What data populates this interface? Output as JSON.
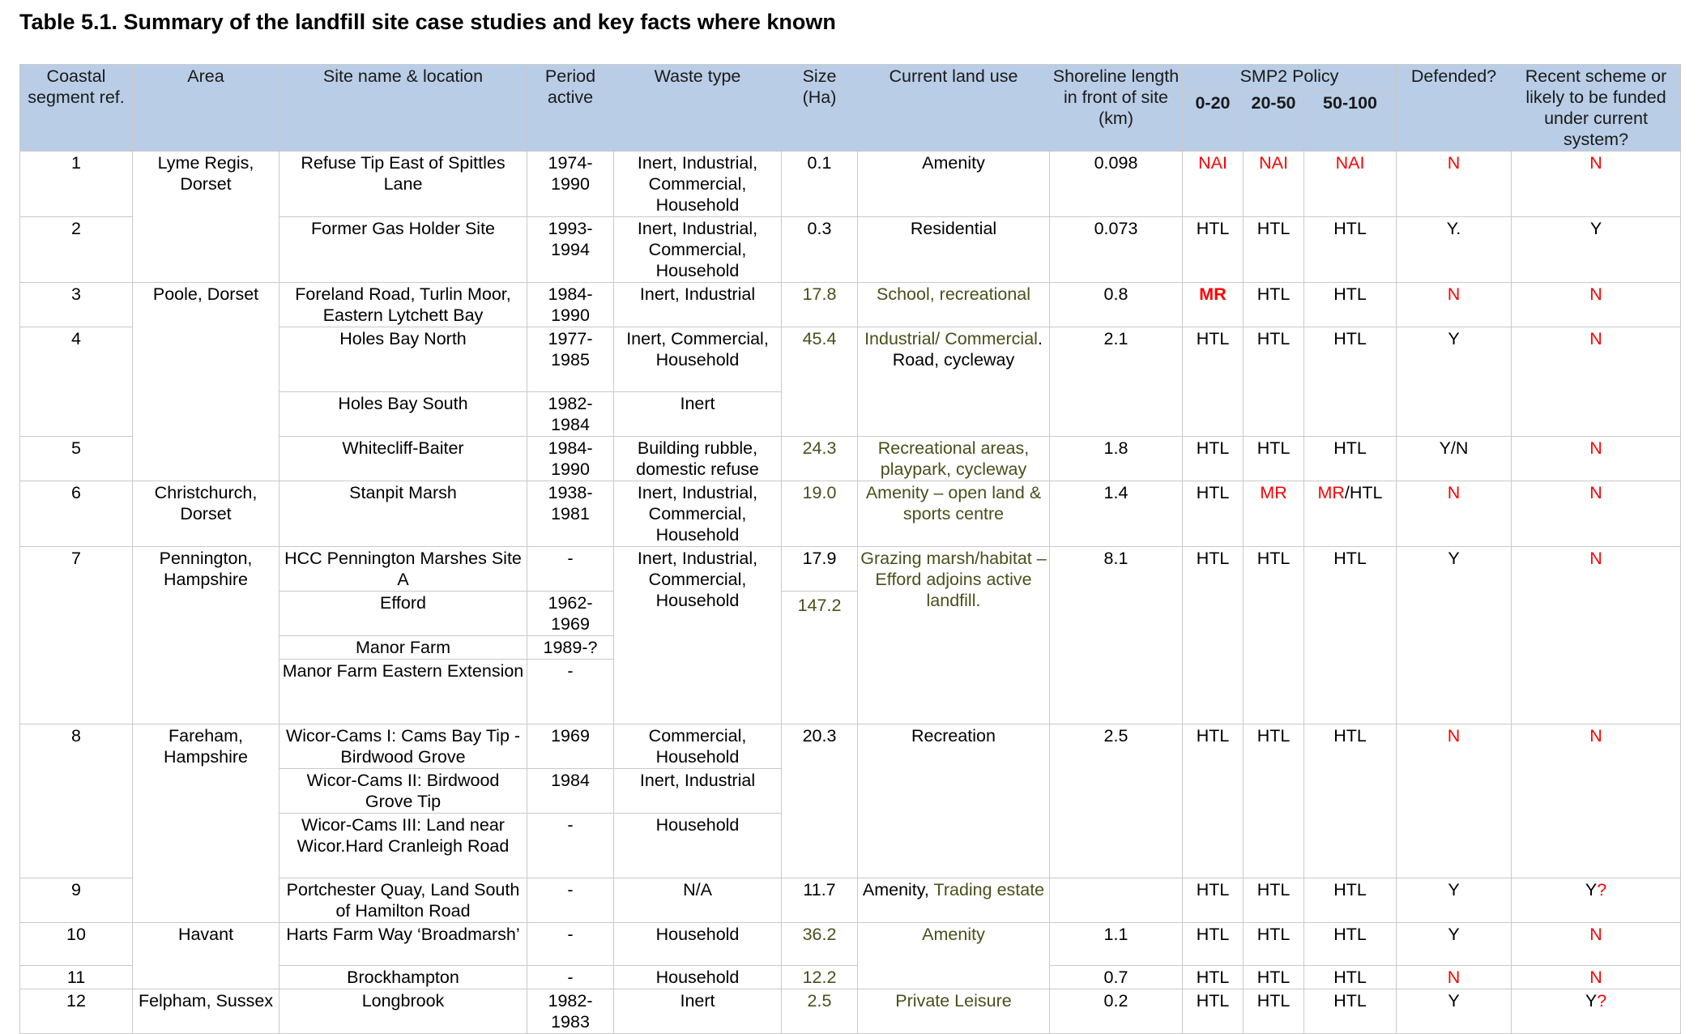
{
  "title": "Table 5.1. Summary of the landfill site case studies and key facts where known",
  "headers": {
    "ref": "Coastal segment ref.",
    "area": "Area",
    "site": "Site name & location",
    "period": "Period active",
    "waste": "Waste type",
    "size": "Size (Ha)",
    "land": "Current land use",
    "shore": "Shoreline length in front of site (km)",
    "smp": "SMP2 Policy",
    "smp0": "0-20",
    "smp20": "20-50",
    "smp50": "50-100",
    "defended": "Defended?",
    "recent": "Recent scheme or likely to be funded under current system?"
  },
  "rows": {
    "r1": {
      "ref": "1",
      "area": "Lyme Regis, Dorset",
      "site": "Refuse Tip East of Spittles Lane",
      "period": "1974-1990",
      "waste": "Inert, Industrial, Commercial, Household",
      "size": "0.1",
      "land": "Amenity",
      "shore": "0.098",
      "p1": "NAI",
      "p2": "NAI",
      "p3": "NAI",
      "def": "N",
      "rec": "N"
    },
    "r2": {
      "ref": "2",
      "site": "Former Gas Holder Site",
      "period": "1993-1994",
      "waste": "Inert, Industrial, Commercial, Household",
      "size": "0.3",
      "land": "Residential",
      "shore": "0.073",
      "p1": "HTL",
      "p2": "HTL",
      "p3": "HTL",
      "def": "Y.",
      "rec": "Y"
    },
    "r3": {
      "ref": "3",
      "area": "Poole, Dorset",
      "site": "Foreland Road, Turlin Moor, Eastern Lytchett Bay",
      "period": "1984-1990",
      "waste": "Inert, Industrial",
      "size": "17.8",
      "land": "School, recreational",
      "shore": "0.8",
      "p1": "MR",
      "p2": "HTL",
      "p3": "HTL",
      "def": "N",
      "rec": "N"
    },
    "r4": {
      "ref": "4",
      "site": "Holes Bay North",
      "period": "1977-1985",
      "waste": "Inert, Commercial, Household",
      "size": "45.4",
      "land_a": "Industrial/ Commercial",
      "land_b": ". Road, cycleway",
      "shore": "2.1",
      "p1": "HTL",
      "p2": "HTL",
      "p3": "HTL",
      "def": "Y",
      "rec": "N"
    },
    "r4b": {
      "site": "Holes Bay South",
      "period": "1982-1984",
      "waste": "Inert"
    },
    "r5": {
      "ref": "5",
      "site": "Whitecliff-Baiter",
      "period": "1984-1990",
      "waste": "Building rubble, domestic refuse",
      "size": "24.3",
      "land": "Recreational areas, playpark, cycleway",
      "shore": "1.8",
      "p1": "HTL",
      "p2": "HTL",
      "p3": "HTL",
      "def": "Y/N",
      "rec": "N"
    },
    "r6": {
      "ref": "6",
      "area": "Christchurch, Dorset",
      "site": "Stanpit Marsh",
      "period": "1938-1981",
      "waste": "Inert, Industrial, Commercial, Household",
      "size": "19.0",
      "land": "Amenity – open land & sports centre",
      "shore": "1.4",
      "p1": "HTL",
      "p2": "MR",
      "p3a": "MR",
      "p3b": "/HTL",
      "def": "N",
      "rec": "N"
    },
    "r7": {
      "ref": "7",
      "area": "Pennington, Hampshire",
      "site": "HCC Pennington Marshes Site A",
      "period": "-",
      "waste": "Inert, Industrial, Commercial, Household",
      "size": "17.9",
      "land": "Grazing marsh/habitat – Efford adjoins active landfill.",
      "shore": "8.1",
      "p1": "HTL",
      "p2": "HTL",
      "p3": "HTL",
      "def": "Y",
      "rec": "N"
    },
    "r7b": {
      "site": "Efford",
      "period": "1962-1969",
      "size": "147.2"
    },
    "r7c": {
      "site": "Manor Farm",
      "period": "1989-?"
    },
    "r7d": {
      "site": "Manor Farm Eastern Extension",
      "period": "-"
    },
    "r8": {
      "ref": "8",
      "area": "Fareham, Hampshire",
      "site": "Wicor-Cams I: Cams Bay Tip - Birdwood Grove",
      "period": "1969",
      "waste": "Commercial, Household",
      "size": "20.3",
      "land": "Recreation",
      "shore": "2.5",
      "p1": "HTL",
      "p2": "HTL",
      "p3": "HTL",
      "def": "N",
      "rec": "N"
    },
    "r8b": {
      "site": "Wicor-Cams II: Birdwood Grove Tip",
      "period": "1984",
      "waste": "Inert, Industrial"
    },
    "r8c": {
      "site": "Wicor-Cams III: Land near Wicor.Hard Cranleigh Road",
      "period": "-",
      "waste": "Household"
    },
    "r9": {
      "ref": "9",
      "site": "Portchester Quay, Land South of Hamilton Road",
      "period": "-",
      "waste": "N/A",
      "size": "11.7",
      "land_a": "Amenity,",
      "land_b": " Trading estate",
      "shore": "",
      "p1": "HTL",
      "p2": "HTL",
      "p3": "HTL",
      "def": "Y",
      "rec_a": "Y",
      "rec_b": "?"
    },
    "r10": {
      "ref": "10",
      "area": "Havant",
      "site": "Harts Farm Way ‘Broadmarsh’",
      "period": "-",
      "waste": "Household",
      "size": "36.2",
      "land": "Amenity",
      "shore": "1.1",
      "p1": "HTL",
      "p2": "HTL",
      "p3": "HTL",
      "def": "Y",
      "rec": "N"
    },
    "r11": {
      "ref": "11",
      "site": "Brockhampton",
      "period": "-",
      "waste": "Household",
      "size": "12.2",
      "shore": "0.7",
      "p1": "HTL",
      "p2": "HTL",
      "p3": "HTL",
      "def": "N",
      "rec": "N"
    },
    "r12": {
      "ref": "12",
      "area": "Felpham, Sussex",
      "site": "Longbrook",
      "period": "1982-1983",
      "waste": "Inert",
      "size": "2.5",
      "land": "Private Leisure",
      "shore": "0.2",
      "p1": "HTL",
      "p2": "HTL",
      "p3": "HTL",
      "def": "Y",
      "rec_a": "Y",
      "rec_b": "?"
    }
  },
  "colors": {
    "header_bg": "#b9cde6",
    "red": "#ff0000",
    "olive": "#4a4f1a",
    "border": "#c9c9c9"
  }
}
